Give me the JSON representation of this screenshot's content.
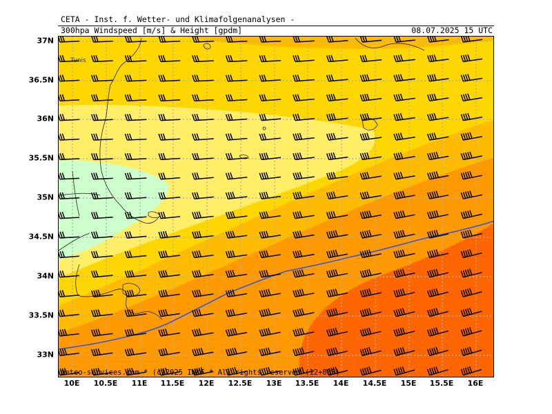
{
  "header": {
    "line1": "CETA - Inst. f. Wetter- und Klimafolgenanalysen -",
    "line2": "300hpa Windspeed [m/s] & Height [gpdm]",
    "valid_time": "08.07.2025 15 UTC"
  },
  "footer": "meteo-services.com * (c)2025 IWKF * All rights reserved (12+003)",
  "city_label": "Tunis",
  "axes": {
    "x_ticks": [
      "10E",
      "10.5E",
      "11E",
      "11.5E",
      "12E",
      "12.5E",
      "13E",
      "13.5E",
      "14E",
      "14.5E",
      "15E",
      "15.5E",
      "16E"
    ],
    "y_ticks": [
      "37N",
      "36.5N",
      "36N",
      "35.5N",
      "35N",
      "34.5N",
      "34N",
      "33.5N",
      "33N"
    ]
  },
  "colors": {
    "lt_green": "#ccffcc",
    "lt_yellow": "#ffee66",
    "yellow": "#ffd700",
    "lt_orange": "#ffbb00",
    "orange": "#ff9900",
    "dk_orange": "#ff6600",
    "grid": "#b0b0b0",
    "contour": "#3355ee",
    "barb": "#000000"
  },
  "contour_label": "height isoline"
}
